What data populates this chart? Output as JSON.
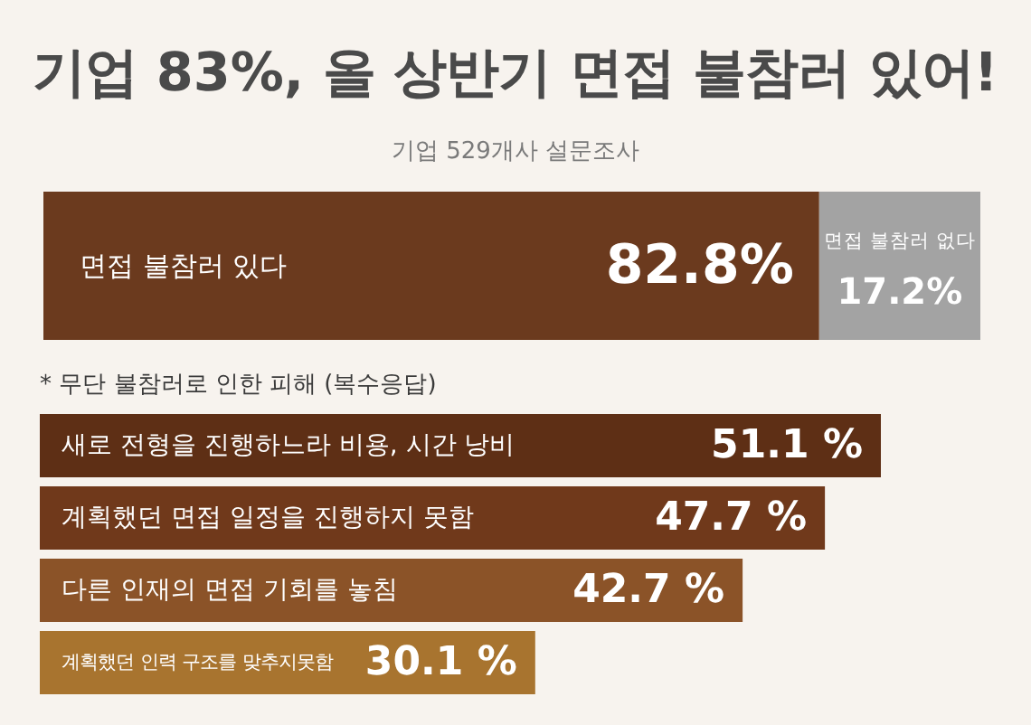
{
  "chart_data": [
    {
      "type": "bar",
      "title": "기업 83%, 올 상반기 면접 불참러 있어!",
      "subtitle": "기업 529개사 설문조사",
      "orientation": "horizontal",
      "stacked": true,
      "categories": [
        null
      ],
      "series": [
        {
          "name": "면접 불참러 있다",
          "color": "#6b3a1e",
          "values": [
            82.8
          ],
          "value_labels": [
            "82.8%"
          ]
        },
        {
          "name": "면접 불참러 없다",
          "color": "#a3a3a3",
          "values": [
            17.2
          ],
          "value_labels": [
            "17.2%"
          ]
        }
      ]
    },
    {
      "type": "bar",
      "title": "* 무단 불참러로 인한 피해 (복수응답)",
      "orientation": "horizontal",
      "categories": [
        "새로 전형을 진행하느라 비용, 시간 낭비",
        "계획했던 면접 일정을 진행하지 못함",
        "다른 인재의 면접 기회를 놓침",
        "계획했던 인력 구조를 맞추지못함"
      ],
      "values": [
        51.1,
        47.7,
        42.7,
        30.1
      ],
      "colors": [
        "#5e2f15",
        "#70391b",
        "#8b5328",
        "#a8742f"
      ],
      "value_labels": [
        "51.1 %",
        "47.7 %",
        "42.7 %",
        "30.1 %"
      ]
    }
  ]
}
